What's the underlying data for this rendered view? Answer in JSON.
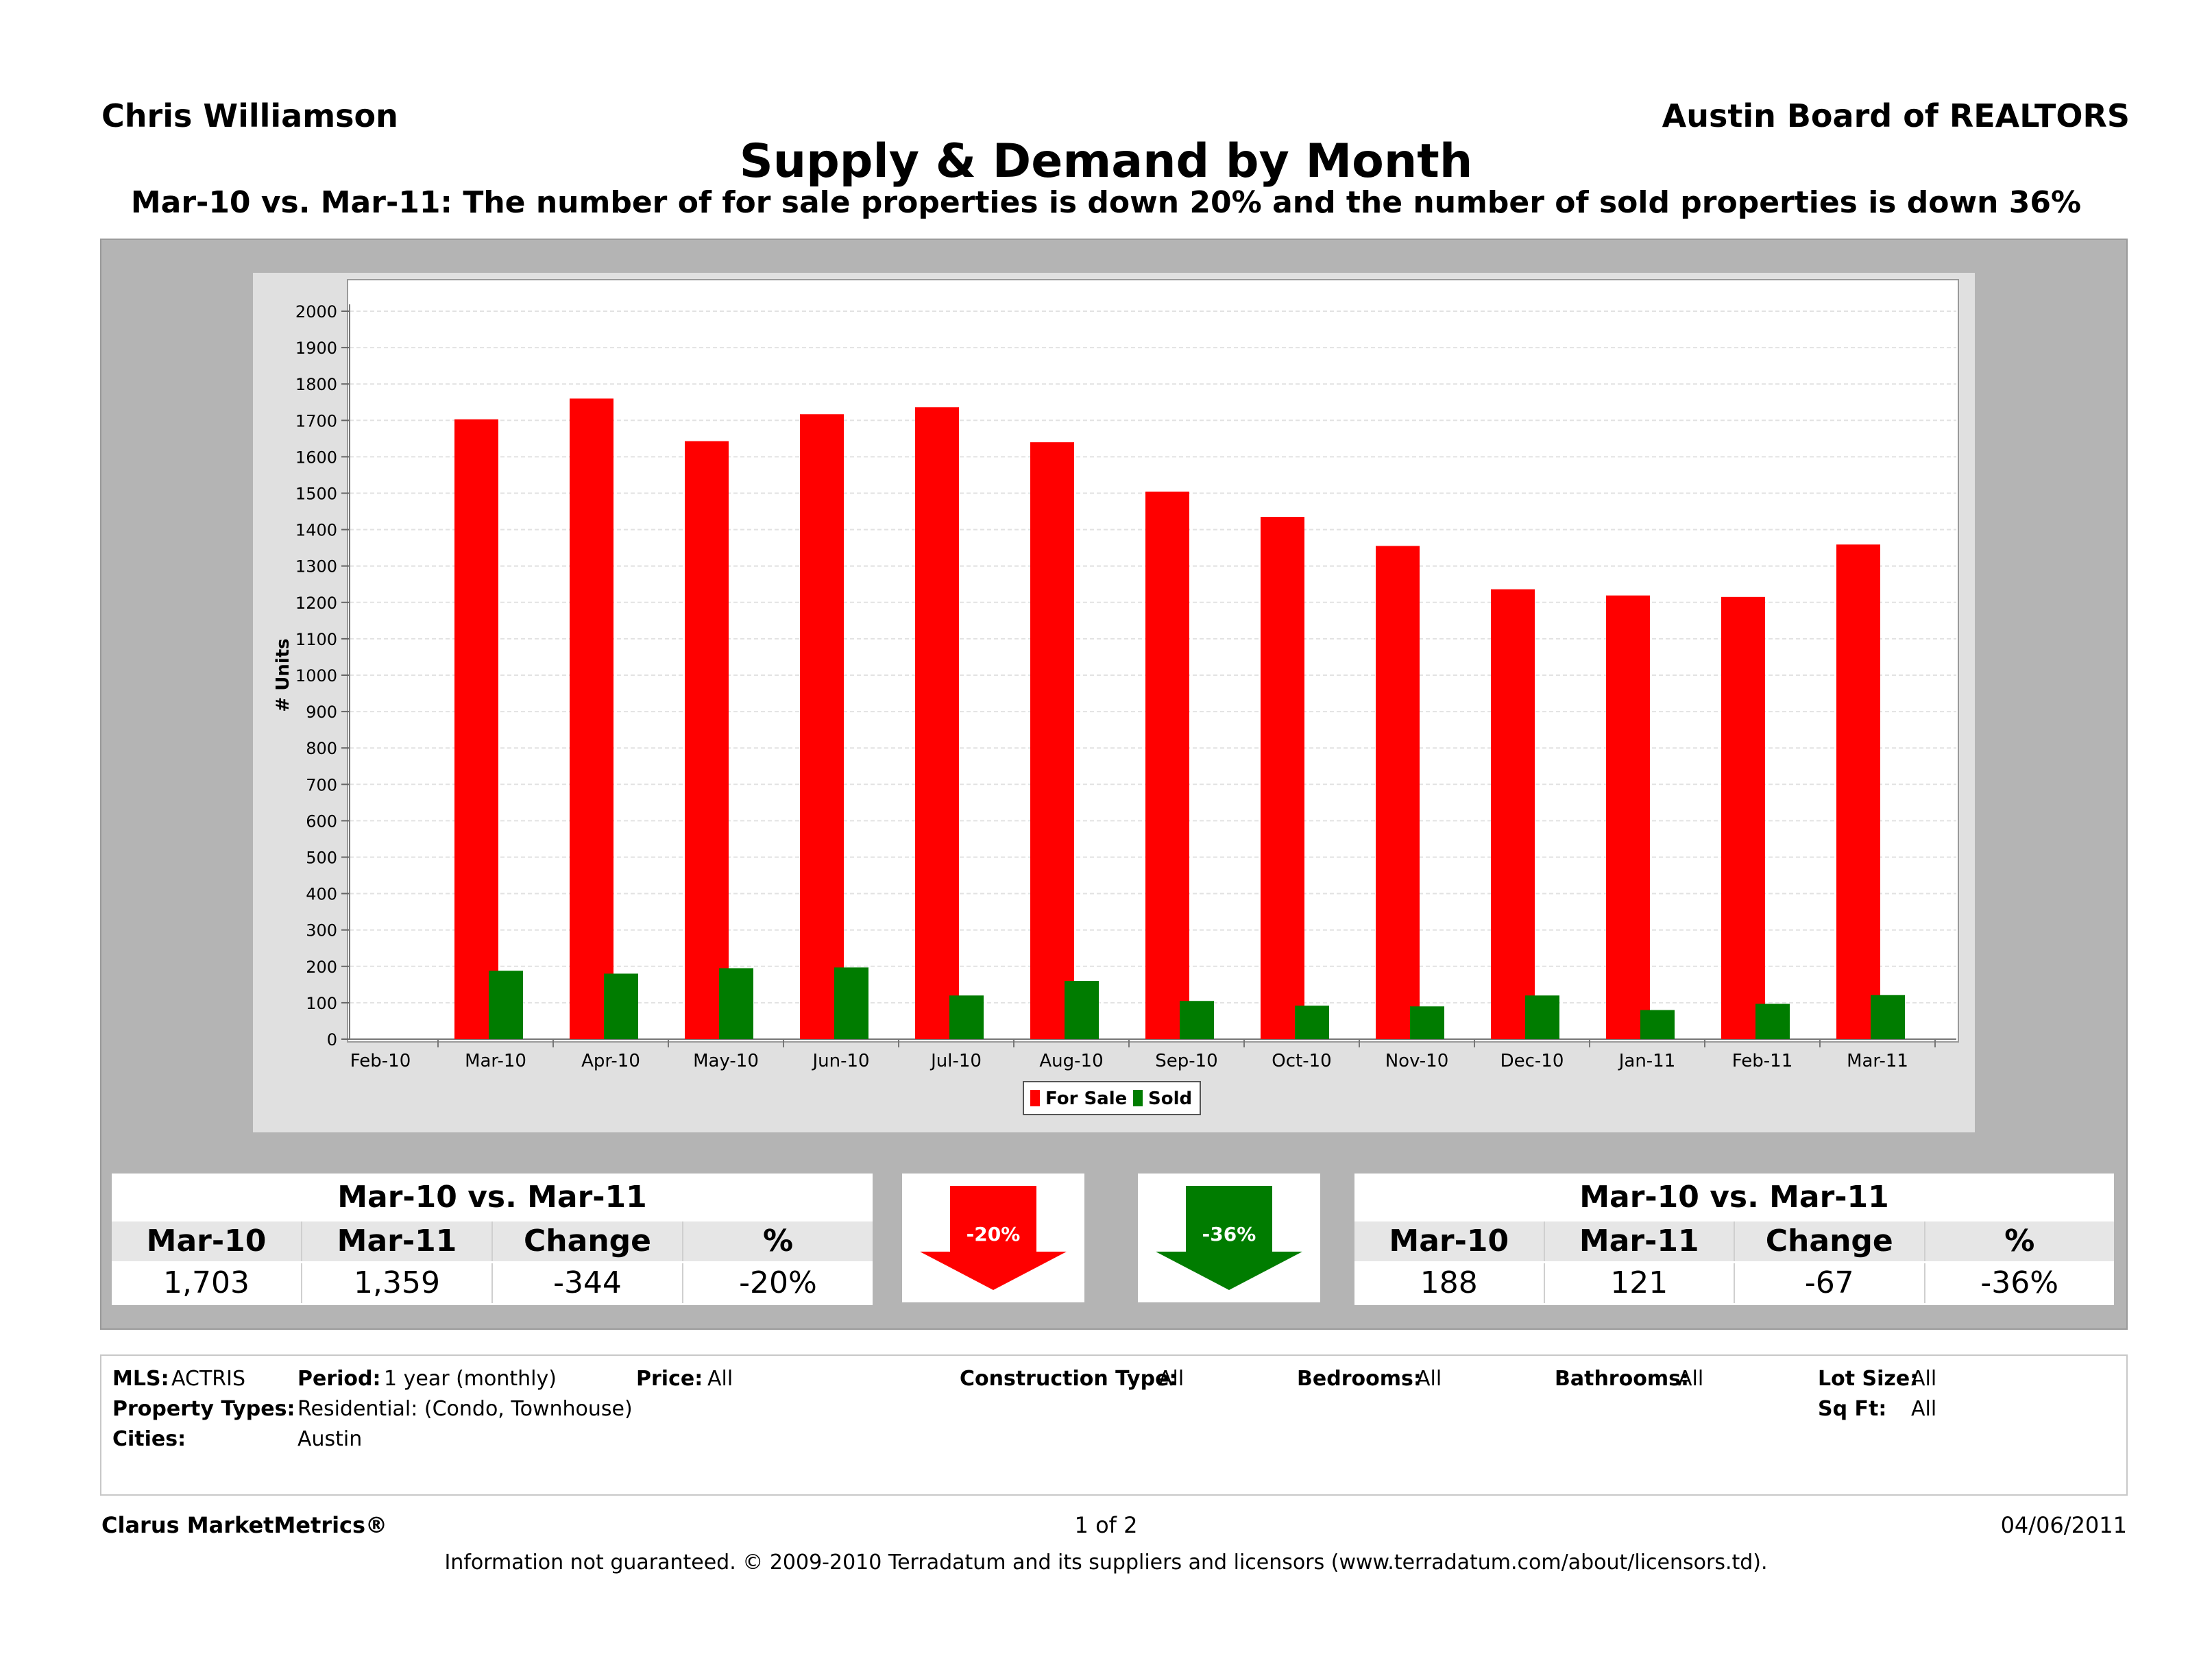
{
  "header": {
    "agent": "Chris Williamson",
    "board": "Austin Board of REALTORS",
    "title": "Supply & Demand by Month",
    "subtitle": "Mar-10 vs. Mar-11:  The number of for sale properties is down 20% and the number of sold properties is down 36%"
  },
  "colors": {
    "for_sale": "#ff0000",
    "sold": "#007c00",
    "panel": "#b4b4b4",
    "chart_bg": "#e0e0e0"
  },
  "chart_data": {
    "type": "bar",
    "title": "",
    "xlabel": "",
    "ylabel": "# Units",
    "ylim": [
      0,
      2000
    ],
    "yticks": [
      0,
      100,
      200,
      300,
      400,
      500,
      600,
      700,
      800,
      900,
      1000,
      1100,
      1200,
      1300,
      1400,
      1500,
      1600,
      1700,
      1800,
      1900,
      2000
    ],
    "categories": [
      "Feb-10",
      "Mar-10",
      "Apr-10",
      "May-10",
      "Jun-10",
      "Jul-10",
      "Aug-10",
      "Sep-10",
      "Oct-10",
      "Nov-10",
      "Dec-10",
      "Jan-11",
      "Feb-11",
      "Mar-11"
    ],
    "series": [
      {
        "name": "For Sale",
        "values": [
          null,
          1703,
          1760,
          1643,
          1717,
          1736,
          1640,
          1504,
          1435,
          1355,
          1236,
          1219,
          1215,
          1359
        ]
      },
      {
        "name": "Sold",
        "values": [
          null,
          188,
          180,
          195,
          197,
          120,
          160,
          105,
          92,
          90,
          120,
          80,
          97,
          121
        ]
      }
    ],
    "grid": true,
    "legend": "bottom-center"
  },
  "for_sale_table": {
    "title": "Mar-10 vs. Mar-11",
    "headers": [
      "Mar-10",
      "Mar-11",
      "Change",
      "%"
    ],
    "values": [
      "1,703",
      "1,359",
      "-344",
      "-20%"
    ]
  },
  "sold_table": {
    "title": "Mar-10 vs. Mar-11",
    "headers": [
      "Mar-10",
      "Mar-11",
      "Change",
      "%"
    ],
    "values": [
      "188",
      "121",
      "-67",
      "-36%"
    ]
  },
  "arrows": {
    "for_sale_change": "-20%",
    "sold_change": "-36%",
    "icon": "down-arrow-icon"
  },
  "criteria": {
    "mls_label": "MLS:",
    "mls_value": "ACTRIS",
    "period_label": "Period:",
    "period_value": "1 year (monthly)",
    "price_label": "Price:",
    "price_value": "All",
    "construction_label": "Construction Type:",
    "construction_value": "All",
    "bedrooms_label": "Bedrooms:",
    "bedrooms_value": "All",
    "bathrooms_label": "Bathrooms:",
    "bathrooms_value": "All",
    "lotsize_label": "Lot Size:",
    "lotsize_value": "All",
    "types_label": "Property Types:",
    "types_value": "Residential: (Condo, Townhouse)",
    "sqft_label": "Sq Ft:",
    "sqft_value": "All",
    "cities_label": "Cities:",
    "cities_value": "Austin"
  },
  "footer": {
    "brand": "Clarus MarketMetrics®",
    "page": "1 of 2",
    "date": "04/06/2011",
    "disclaimer": "Information not guaranteed.  © 2009-2010 Terradatum and its suppliers and licensors (www.terradatum.com/about/licensors.td)."
  }
}
